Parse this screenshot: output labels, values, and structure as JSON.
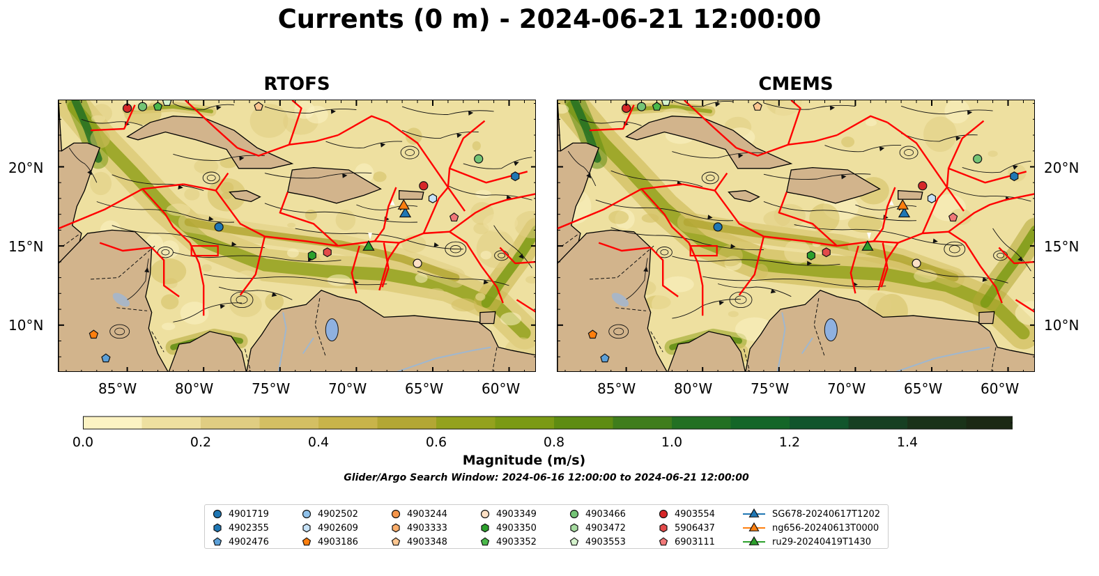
{
  "title": "Currents (0 m) - 2024-06-21 12:00:00",
  "panels": [
    {
      "title": "RTOFS"
    },
    {
      "title": "CMEMS"
    }
  ],
  "axes": {
    "x_ticks": [
      "85°W",
      "80°W",
      "75°W",
      "70°W",
      "65°W",
      "60°W"
    ],
    "y_ticks": [
      "20°N",
      "15°N",
      "10°N"
    ]
  },
  "colorbar": {
    "label": "Magnitude (m/s)",
    "ticks": [
      "0.0",
      "0.2",
      "0.4",
      "0.6",
      "0.8",
      "1.0",
      "1.2",
      "1.4"
    ],
    "range": [
      0,
      1.6
    ],
    "extend": "max",
    "colors": [
      "#fcf3c3",
      "#eee0a0",
      "#e0cd82",
      "#d4bf63",
      "#c8b44a",
      "#b3a734",
      "#94a21e",
      "#7b9a14",
      "#5e8c12",
      "#3f7d1c",
      "#237023",
      "#146628",
      "#11552c",
      "#163f22",
      "#1a3219",
      "#1b2814"
    ]
  },
  "search_window": "Glider/Argo Search Window: 2024-06-16 12:00:00 to 2024-06-21 12:00:00",
  "map_colors": {
    "land": "#d2b48c",
    "lakes": "#8fb1e0",
    "eez": "#ff0000",
    "coast": "#000000"
  },
  "legend": [
    {
      "label": "4901719",
      "color": "#1f77b4",
      "marker": "circle"
    },
    {
      "label": "4902355",
      "color": "#1f77b4",
      "marker": "hexagon"
    },
    {
      "label": "4902476",
      "color": "#5ca0d8",
      "marker": "pentagon"
    },
    {
      "label": "4902502",
      "color": "#8fc1ea",
      "marker": "circle"
    },
    {
      "label": "4902609",
      "color": "#c6e2f7",
      "marker": "hexagon"
    },
    {
      "label": "4903186",
      "color": "#ff7f0e",
      "marker": "pentagon"
    },
    {
      "label": "4903244",
      "color": "#f5954a",
      "marker": "circle"
    },
    {
      "label": "4903333",
      "color": "#fbae6b",
      "marker": "hexagon"
    },
    {
      "label": "4903348",
      "color": "#fdc690",
      "marker": "pentagon"
    },
    {
      "label": "4903349",
      "color": "#fde0c5",
      "marker": "circle"
    },
    {
      "label": "4903350",
      "color": "#2ca02c",
      "marker": "hexagon"
    },
    {
      "label": "4903352",
      "color": "#4ab84a",
      "marker": "pentagon"
    },
    {
      "label": "4903466",
      "color": "#74c476",
      "marker": "circle"
    },
    {
      "label": "4903472",
      "color": "#a6dba0",
      "marker": "hexagon"
    },
    {
      "label": "4903553",
      "color": "#d4f2cc",
      "marker": "pentagon"
    },
    {
      "label": "4903554",
      "color": "#d62728",
      "marker": "circle"
    },
    {
      "label": "5906437",
      "color": "#e34a4a",
      "marker": "hexagon"
    },
    {
      "label": "6903111",
      "color": "#f07878",
      "marker": "pentagon"
    },
    {
      "label": "SG678-20240617T1202",
      "color": "#1f77b4",
      "marker": "triangle"
    },
    {
      "label": "ng656-20240613T0000",
      "color": "#ff7f0e",
      "marker": "triangle"
    },
    {
      "label": "ru29-20240419T1430",
      "color": "#2ca02c",
      "marker": "triangle"
    }
  ]
}
